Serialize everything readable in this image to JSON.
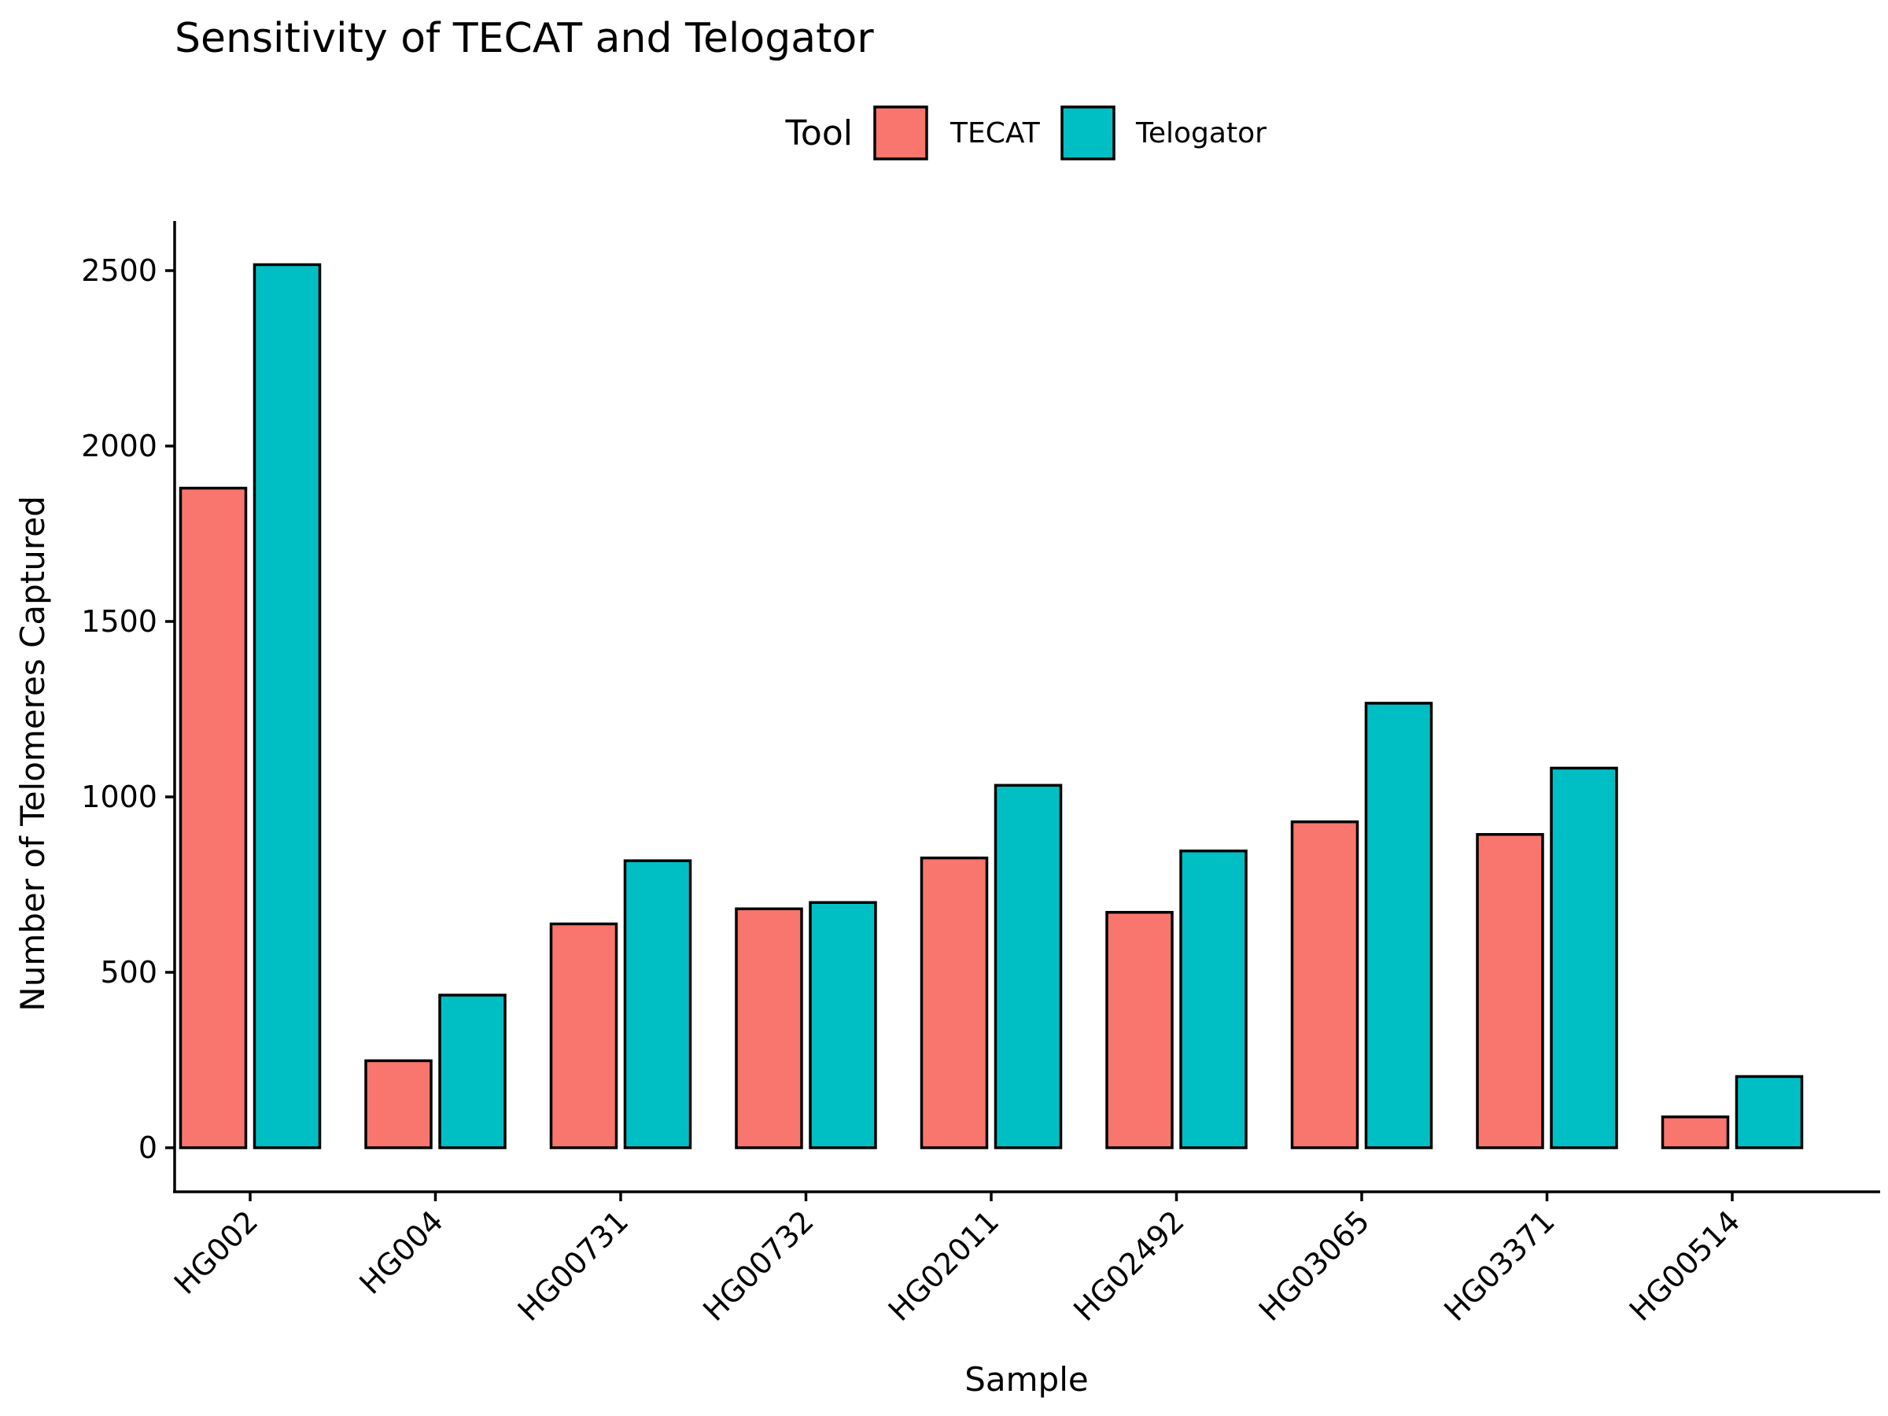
{
  "chart_data": {
    "type": "bar",
    "title": "Sensitivity of TECAT and Telogator",
    "xlabel": "Sample",
    "ylabel": "Number of Telomeres Captured",
    "categories": [
      "HG002",
      "HG004",
      "HG00731",
      "HG00732",
      "HG02011",
      "HG02492",
      "HG03065",
      "HG03371",
      "HG00514"
    ],
    "series": [
      {
        "name": "TECAT",
        "color": "#F8766D",
        "values": [
          1880,
          248,
          638,
          681,
          826,
          671,
          929,
          893,
          88
        ]
      },
      {
        "name": "Telogator",
        "color": "#00BFC4",
        "values": [
          2517,
          435,
          818,
          699,
          1033,
          846,
          1267,
          1082,
          203
        ]
      }
    ],
    "yticks": [
      0,
      500,
      1000,
      1500,
      2000,
      2500
    ],
    "ylim": [
      -125,
      2640
    ],
    "legend": {
      "title": "Tool",
      "position": "top"
    },
    "grid": false
  }
}
